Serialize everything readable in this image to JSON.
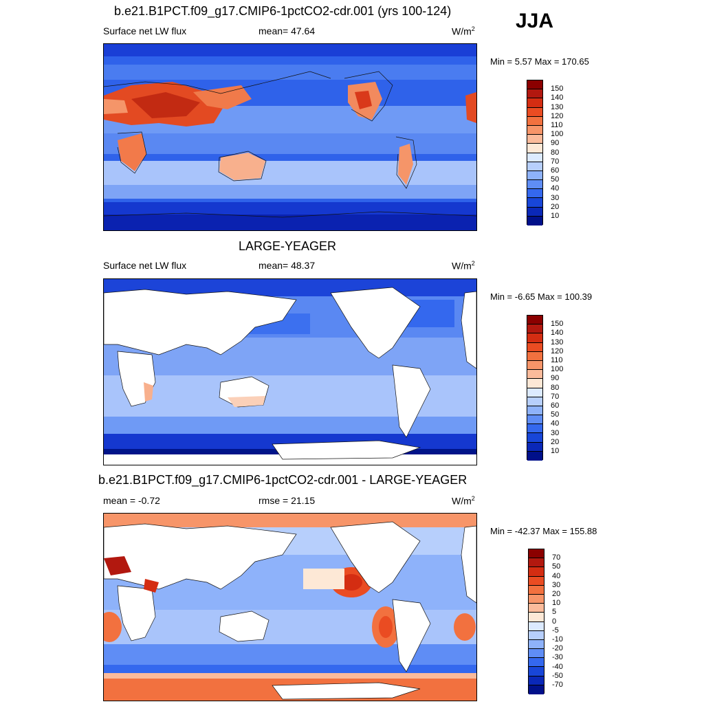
{
  "figure": {
    "season": "JJA",
    "panels": [
      {
        "id": "top",
        "title": "b.e21.B1PCT.f09_g17.CMIP6-1pctCO2-cdr.001 (yrs 100-124)",
        "left_label": "Surface net LW flux",
        "center_label": "mean=  47.64",
        "unit_base": "W/m",
        "unit_exp": "2",
        "minmax": "Min =   5.57 Max = 170.65",
        "colorbar_labels": [
          "150",
          "140",
          "130",
          "120",
          "110",
          "100",
          "90",
          "80",
          "70",
          "60",
          "50",
          "40",
          "30",
          "20",
          "10"
        ],
        "colorbar_colors": [
          "#8b0000",
          "#b2180f",
          "#d42d12",
          "#ea4c22",
          "#f2713f",
          "#f79569",
          "#fbbb9b",
          "#fde8d6",
          "#dceaff",
          "#b7cffc",
          "#8eb2fa",
          "#5f8df5",
          "#3468ee",
          "#1846d8",
          "#0a28b8",
          "#00108a"
        ]
      },
      {
        "id": "middle",
        "title": "LARGE-YEAGER",
        "left_label": "Surface net LW flux",
        "center_label": "mean=  48.37",
        "unit_base": "W/m",
        "unit_exp": "2",
        "minmax": "Min =  -6.65 Max = 100.39",
        "colorbar_labels": [
          "150",
          "140",
          "130",
          "120",
          "110",
          "100",
          "90",
          "80",
          "70",
          "60",
          "50",
          "40",
          "30",
          "20",
          "10"
        ],
        "colorbar_colors": [
          "#8b0000",
          "#b2180f",
          "#d42d12",
          "#ea4c22",
          "#f2713f",
          "#f79569",
          "#fbbb9b",
          "#fde8d6",
          "#dceaff",
          "#b7cffc",
          "#8eb2fa",
          "#5f8df5",
          "#3468ee",
          "#1846d8",
          "#0a28b8",
          "#00108a"
        ]
      },
      {
        "id": "bottom",
        "title": "b.e21.B1PCT.f09_g17.CMIP6-1pctCO2-cdr.001 - LARGE-YEAGER",
        "left_label": "mean =  -0.72",
        "center_label": "rmse =  21.15",
        "unit_base": "W/m",
        "unit_exp": "2",
        "minmax": "Min = -42.37 Max = 155.88",
        "colorbar_labels": [
          "70",
          "50",
          "40",
          "30",
          "20",
          "10",
          "5",
          "0",
          "-5",
          "-10",
          "-20",
          "-30",
          "-40",
          "-50",
          "-70"
        ],
        "colorbar_colors": [
          "#8b0000",
          "#b2180f",
          "#d42d12",
          "#ea4c22",
          "#f2713f",
          "#f79569",
          "#fbbb9b",
          "#fde8d6",
          "#dceaff",
          "#b7cffc",
          "#8eb2fa",
          "#5f8df5",
          "#3468ee",
          "#1846d8",
          "#0a28b8",
          "#00108a"
        ]
      }
    ]
  }
}
